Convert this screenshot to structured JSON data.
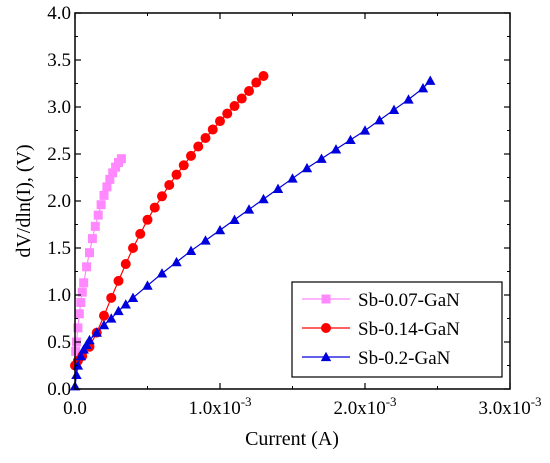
{
  "chart_data": {
    "type": "scatter",
    "xlabel": "Current (A)",
    "ylabel": "dV/dln(I), (V)",
    "xlim": [
      0,
      0.003
    ],
    "ylim": [
      0,
      4.0
    ],
    "x_ticks": [
      {
        "value": 0.0,
        "label": "0.0"
      },
      {
        "value": 0.001,
        "label": "1.0x10",
        "exp": "-3"
      },
      {
        "value": 0.002,
        "label": "2.0x10",
        "exp": "-3"
      },
      {
        "value": 0.003,
        "label": "3.0x10",
        "exp": "-3"
      }
    ],
    "y_ticks": [
      {
        "value": 0.0,
        "label": "0.0"
      },
      {
        "value": 0.5,
        "label": "0.5"
      },
      {
        "value": 1.0,
        "label": "1.0"
      },
      {
        "value": 1.5,
        "label": "1.5"
      },
      {
        "value": 2.0,
        "label": "2.0"
      },
      {
        "value": 2.5,
        "label": "2.5"
      },
      {
        "value": 3.0,
        "label": "3.0"
      },
      {
        "value": 3.5,
        "label": "3.5"
      },
      {
        "value": 4.0,
        "label": "4.0"
      }
    ],
    "grid": false,
    "legend_position": "bottom-right",
    "series": [
      {
        "name": "Sb-0.07-GaN",
        "color": "#ff88ff",
        "marker": "square",
        "x": [
          5e-06,
          1e-05,
          2e-05,
          3e-05,
          4e-05,
          5e-05,
          6e-05,
          8e-05,
          0.0001,
          0.00012,
          0.00014,
          0.00016,
          0.00018,
          0.0002,
          0.00022,
          0.00024,
          0.00026,
          0.00028,
          0.0003,
          0.00032
        ],
        "y": [
          0.4,
          0.5,
          0.65,
          0.8,
          0.92,
          1.03,
          1.13,
          1.3,
          1.45,
          1.6,
          1.73,
          1.85,
          1.96,
          2.06,
          2.15,
          2.23,
          2.3,
          2.36,
          2.41,
          2.45
        ]
      },
      {
        "name": "Sb-0.14-GaN",
        "color": "#ff0000",
        "marker": "circle",
        "x": [
          0.0,
          2e-05,
          5e-05,
          0.0001,
          0.00015,
          0.0002,
          0.00025,
          0.0003,
          0.00035,
          0.0004,
          0.00045,
          0.0005,
          0.00055,
          0.0006,
          0.00065,
          0.0007,
          0.00075,
          0.0008,
          0.00085,
          0.0009,
          0.00095,
          0.001,
          0.00105,
          0.0011,
          0.00115,
          0.0012,
          0.00125,
          0.0013
        ],
        "y": [
          0.25,
          0.3,
          0.35,
          0.45,
          0.6,
          0.78,
          0.97,
          1.15,
          1.33,
          1.5,
          1.65,
          1.8,
          1.93,
          2.05,
          2.17,
          2.28,
          2.38,
          2.48,
          2.58,
          2.67,
          2.76,
          2.85,
          2.93,
          3.01,
          3.09,
          3.17,
          3.26,
          3.33
        ]
      },
      {
        "name": "Sb-0.2-GaN",
        "color": "#0000dd",
        "marker": "triangle",
        "x": [
          0.0,
          1e-05,
          2e-05,
          4e-05,
          6e-05,
          8e-05,
          0.0001,
          0.00015,
          0.0002,
          0.00025,
          0.0003,
          0.00035,
          0.0004,
          0.0005,
          0.0006,
          0.0007,
          0.0008,
          0.0009,
          0.001,
          0.0011,
          0.0012,
          0.0013,
          0.0014,
          0.0015,
          0.0016,
          0.0017,
          0.0018,
          0.0019,
          0.002,
          0.0021,
          0.0022,
          0.0023,
          0.0024,
          0.00245
        ],
        "y": [
          0.03,
          0.15,
          0.25,
          0.35,
          0.42,
          0.47,
          0.52,
          0.6,
          0.68,
          0.75,
          0.83,
          0.9,
          0.97,
          1.1,
          1.23,
          1.35,
          1.47,
          1.58,
          1.69,
          1.8,
          1.91,
          2.02,
          2.13,
          2.24,
          2.35,
          2.45,
          2.55,
          2.65,
          2.75,
          2.86,
          2.97,
          3.08,
          3.2,
          3.28
        ]
      }
    ]
  }
}
